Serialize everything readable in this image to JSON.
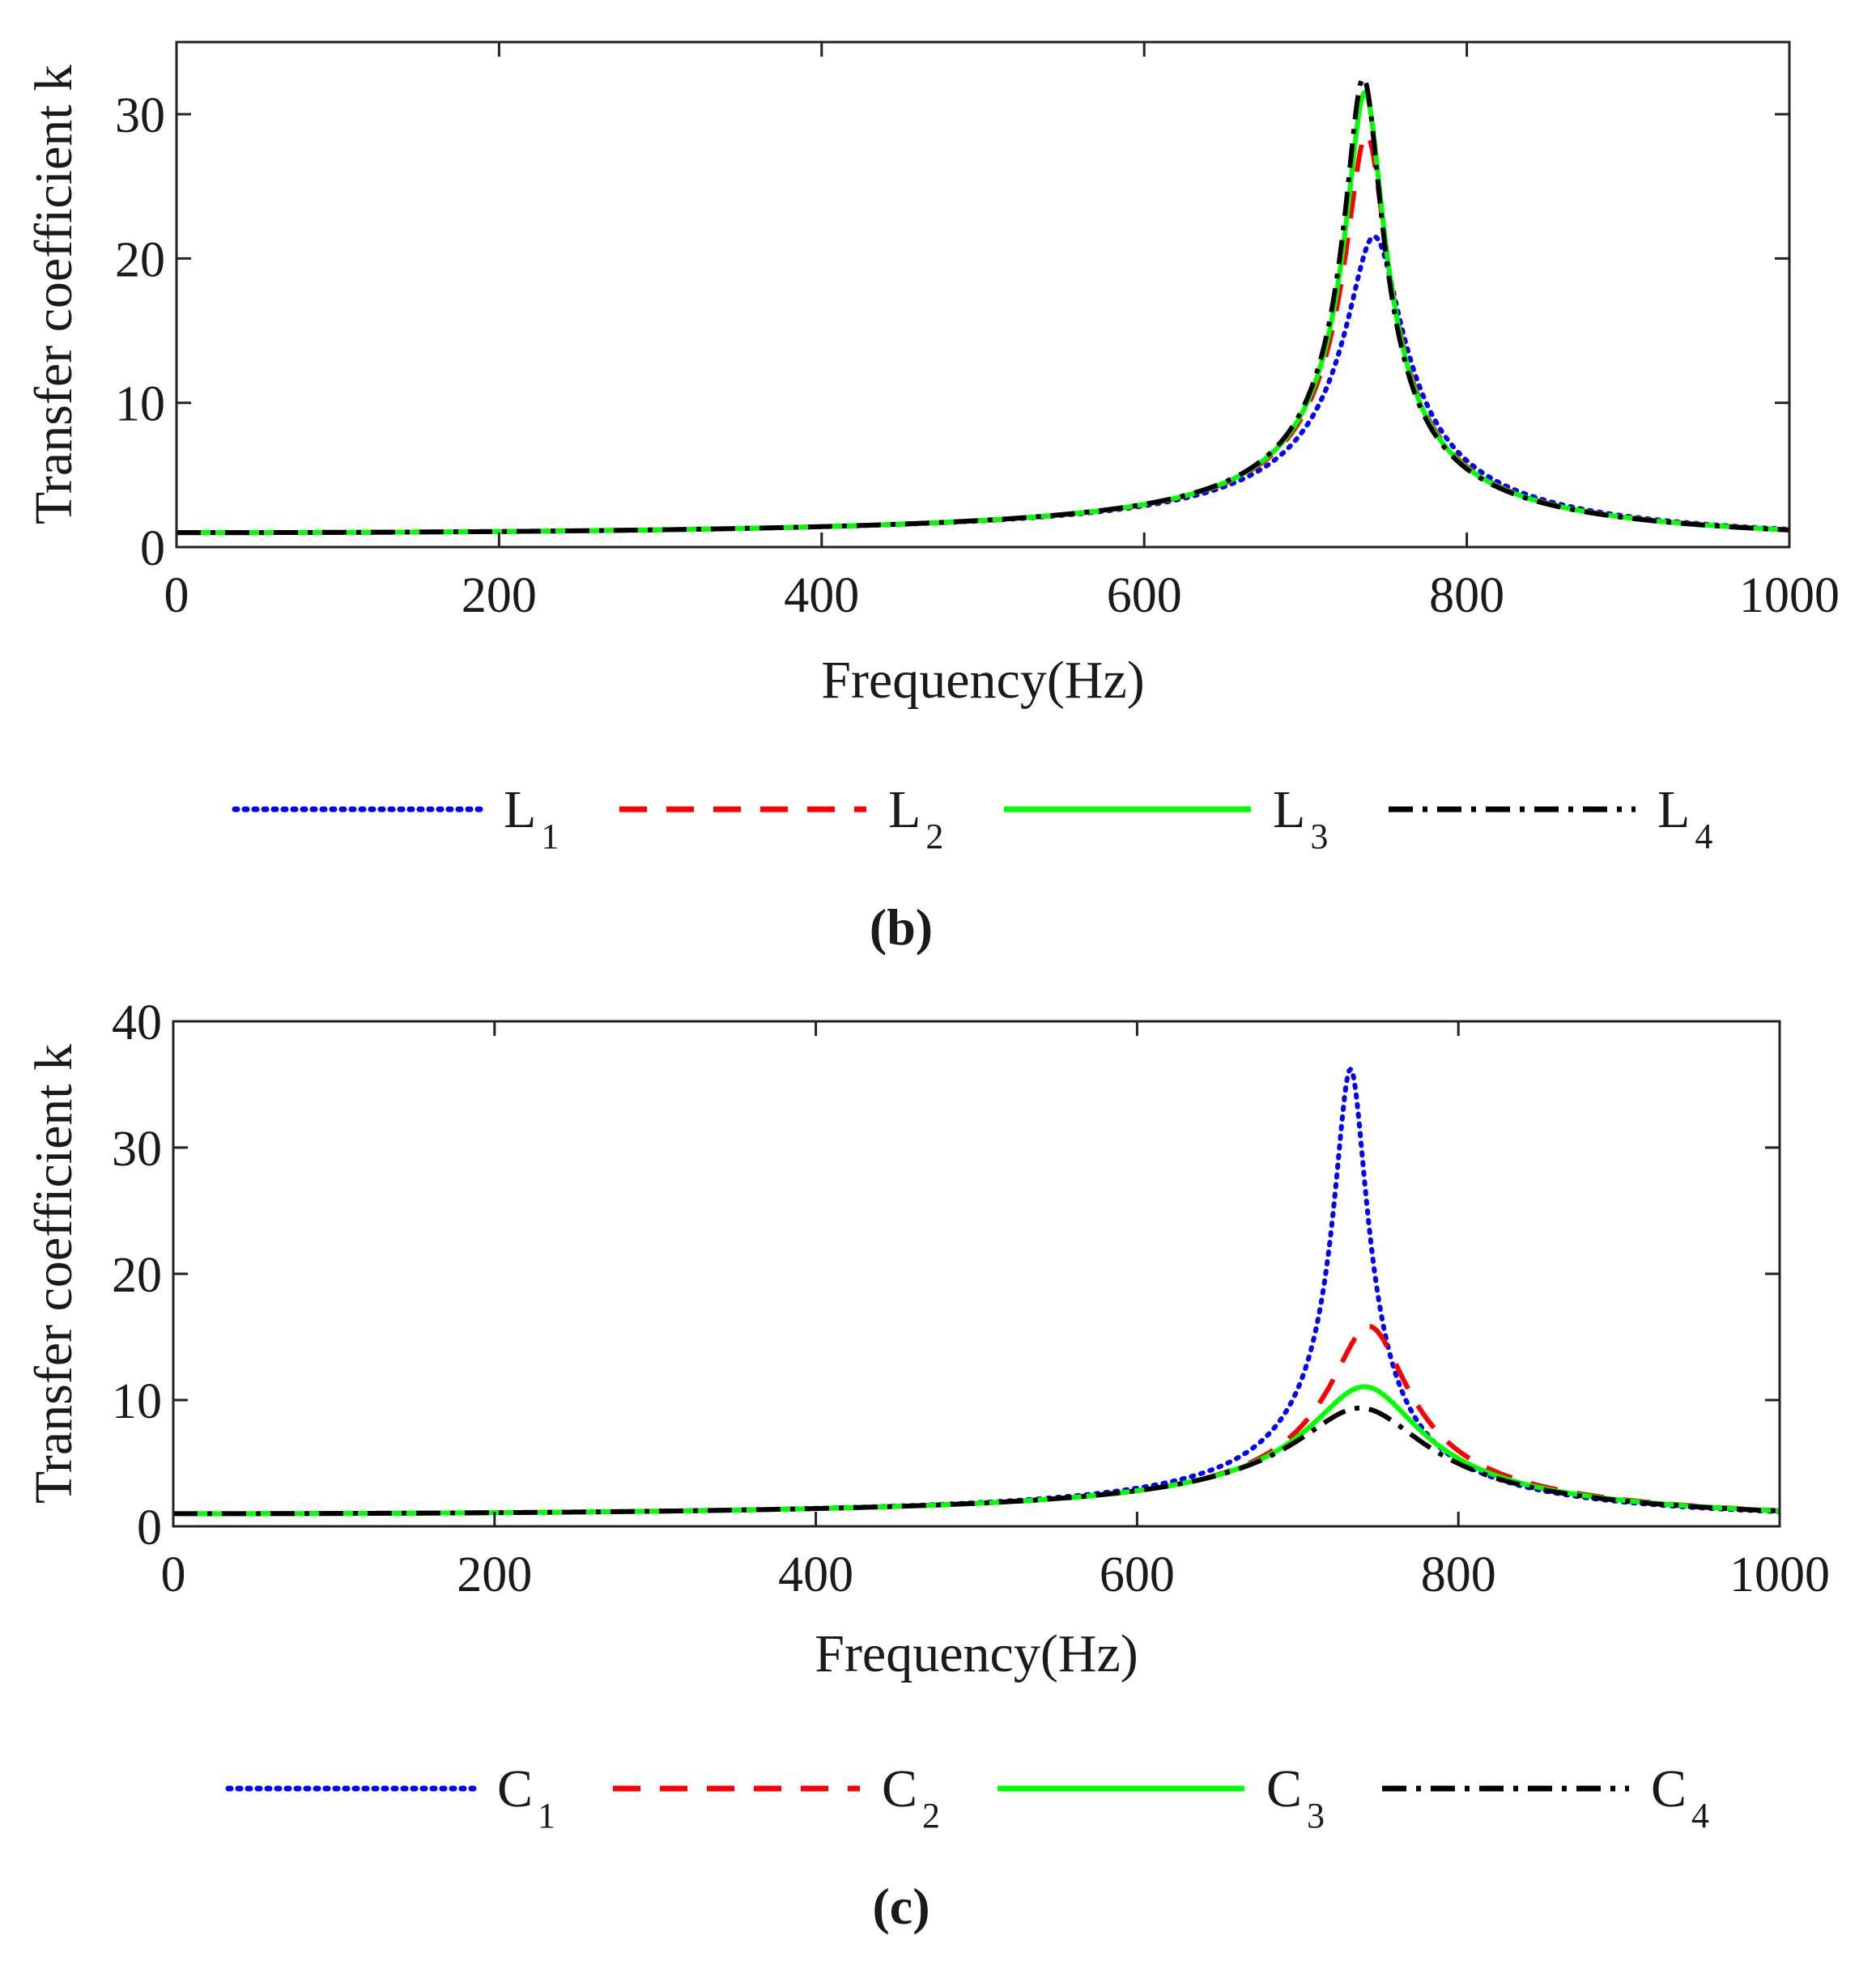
{
  "chart_data": [
    {
      "type": "line",
      "panel_label": "(b)",
      "xlabel": "Frequency(Hz)",
      "ylabel": "Transfer coefficient k",
      "xlim": [
        0,
        1000
      ],
      "ylim": [
        0,
        35
      ],
      "xticks": [
        0,
        200,
        400,
        600,
        800,
        1000
      ],
      "yticks": [
        0,
        10,
        20,
        30
      ],
      "legend_position": "bottom",
      "series": [
        {
          "name": "L",
          "sub": "1",
          "color": "#0000ff",
          "style": "dotted",
          "f0": 743,
          "peak": 21.5
        },
        {
          "name": "L",
          "sub": "2",
          "color": "#ff0000",
          "style": "dashed",
          "f0": 738,
          "peak": 28.6
        },
        {
          "name": "L",
          "sub": "3",
          "color": "#00ff00",
          "style": "solid",
          "f0": 737,
          "peak": 31.5
        },
        {
          "name": "L",
          "sub": "4",
          "color": "#000000",
          "style": "dashdot",
          "f0": 736,
          "peak": 32.5
        }
      ]
    },
    {
      "type": "line",
      "panel_label": "(c)",
      "xlabel": "Frequency(Hz)",
      "ylabel": "Transfer coefficient k",
      "xlim": [
        0,
        1000
      ],
      "ylim": [
        0,
        40
      ],
      "xticks": [
        0,
        200,
        400,
        600,
        800,
        1000
      ],
      "yticks": [
        0,
        10,
        20,
        30,
        40
      ],
      "legend_position": "bottom",
      "series": [
        {
          "name": "C",
          "sub": "1",
          "color": "#0000ff",
          "style": "dotted",
          "f0": 733,
          "peak": 36.2
        },
        {
          "name": "C",
          "sub": "2",
          "color": "#ff0000",
          "style": "dashed",
          "f0": 745,
          "peak": 15.8
        },
        {
          "name": "C",
          "sub": "3",
          "color": "#00ff00",
          "style": "solid",
          "f0": 743,
          "peak": 11.0
        },
        {
          "name": "C",
          "sub": "4",
          "color": "#000000",
          "style": "dashdot",
          "f0": 741,
          "peak": 9.3
        }
      ]
    }
  ]
}
